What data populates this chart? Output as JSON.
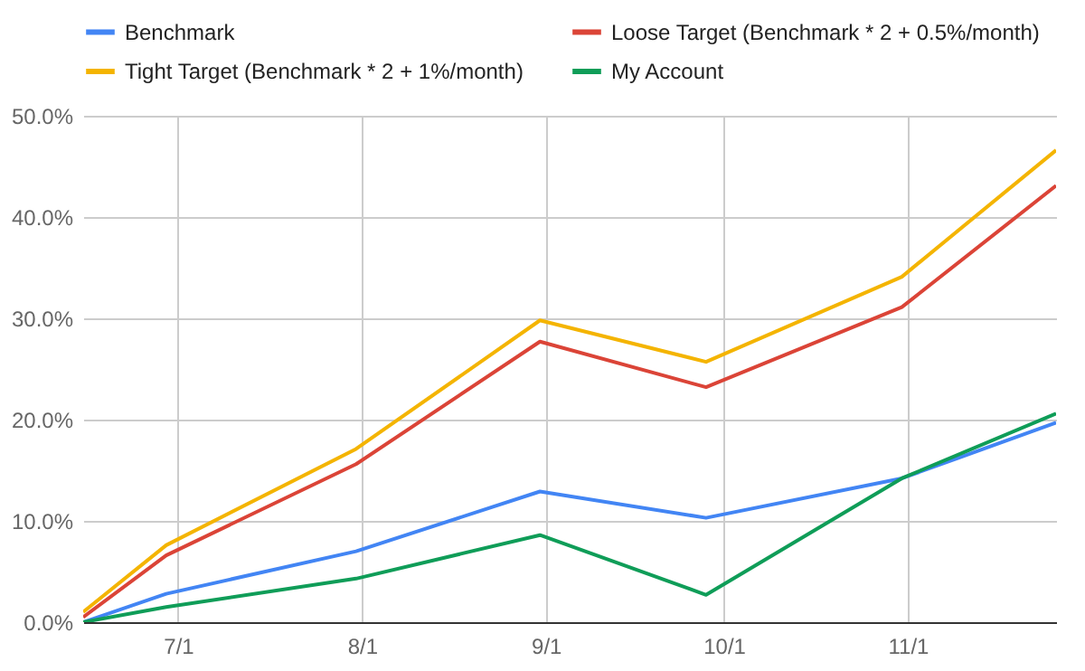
{
  "chart_data": {
    "type": "line",
    "x": [
      "--06-15",
      "--06-29",
      "--07-31",
      "--08-31",
      "--09-28",
      "--10-31",
      "--11-26"
    ],
    "series": [
      {
        "name": "Benchmark",
        "color": "#4285f4",
        "values": [
          0,
          2.8,
          7.0,
          12.9,
          10.3,
          14.2,
          19.7
        ]
      },
      {
        "name": "Loose Target (Benchmark * 2 + 0.5%/month)",
        "color": "#db4437",
        "values": [
          0.5,
          6.6,
          15.6,
          27.7,
          23.2,
          31.1,
          43.1
        ]
      },
      {
        "name": "Tight Target (Benchmark * 2 + 1%/month)",
        "color": "#f4b400",
        "values": [
          1.0,
          7.6,
          17.1,
          29.8,
          25.7,
          34.1,
          46.6
        ]
      },
      {
        "name": "My Account",
        "color": "#0f9d58",
        "values": [
          0,
          1.5,
          4.3,
          8.6,
          2.7,
          14.2,
          20.6
        ]
      }
    ],
    "xlim": [
      "--06-15",
      "--11-26"
    ],
    "xticks": [
      {
        "value": "--07-01",
        "label": "7/1"
      },
      {
        "value": "--08-01",
        "label": "8/1"
      },
      {
        "value": "--09-01",
        "label": "9/1"
      },
      {
        "value": "--10-01",
        "label": "10/1"
      },
      {
        "value": "--11-01",
        "label": "11/1"
      }
    ],
    "ylim": [
      0,
      50
    ],
    "yticks": [
      {
        "value": 0,
        "label": "0.0%"
      },
      {
        "value": 10,
        "label": "10.0%"
      },
      {
        "value": 20,
        "label": "20.0%"
      },
      {
        "value": 30,
        "label": "30.0%"
      },
      {
        "value": 40,
        "label": "40.0%"
      },
      {
        "value": 50,
        "label": "50.0%"
      }
    ],
    "grid": true,
    "legend": "top"
  }
}
